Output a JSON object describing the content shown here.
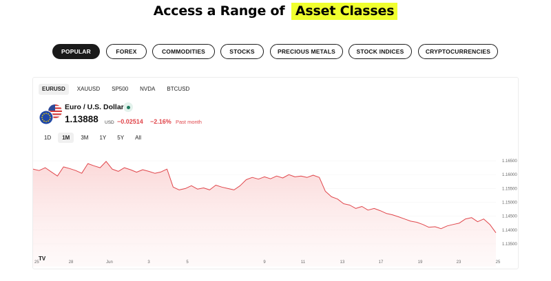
{
  "heading": {
    "prefix": "Access a Range of",
    "highlight": "Asset Classes"
  },
  "categories": [
    {
      "label": "POPULAR",
      "active": true
    },
    {
      "label": "FOREX",
      "active": false
    },
    {
      "label": "COMMODITIES",
      "active": false
    },
    {
      "label": "STOCKS",
      "active": false
    },
    {
      "label": "PRECIOUS METALS",
      "active": false
    },
    {
      "label": "STOCK INDICES",
      "active": false
    },
    {
      "label": "CRYPTOCURRENCIES",
      "active": false
    }
  ],
  "widget": {
    "symbols": [
      "EURUSD",
      "XAUUSD",
      "SP500",
      "NVDA",
      "BTCUSD"
    ],
    "active_symbol": "EURUSD",
    "instrument": "Euro / U.S. Dollar",
    "price": "1.13888",
    "currency": "USD",
    "change": "−0.02514",
    "change_pct": "−2.16%",
    "period": "Past month",
    "ranges": [
      "1D",
      "1M",
      "3M",
      "1Y",
      "5Y",
      "All"
    ],
    "active_range": "1M",
    "colors": {
      "line": "#e0454a",
      "fill": "#fde3e3",
      "status": "#1e7b5e"
    }
  },
  "chart_data": {
    "type": "area",
    "x_ticks": [
      "25",
      "28",
      "Jun",
      "3",
      "5",
      "",
      "9",
      "11",
      "13",
      "17",
      "19",
      "23",
      "25",
      ""
    ],
    "y_ticks": [
      "1.16500",
      "1.16000",
      "1.15500",
      "1.15000",
      "1.14500",
      "1.14000",
      "1.13500"
    ],
    "ylim": [
      1.133,
      1.167
    ],
    "series": [
      {
        "values": [
          1.162,
          1.1615,
          1.1625,
          1.161,
          1.1595,
          1.1628,
          1.1622,
          1.1615,
          1.1605,
          1.164,
          1.1632,
          1.1625,
          1.1648,
          1.162,
          1.1612,
          1.1625,
          1.1618,
          1.1609,
          1.1618,
          1.1612,
          1.1605,
          1.161,
          1.162,
          1.1555,
          1.1545,
          1.155,
          1.156,
          1.1548,
          1.1552,
          1.1545,
          1.1562,
          1.1555,
          1.155,
          1.1545,
          1.156,
          1.1582,
          1.159,
          1.1584,
          1.1592,
          1.1585,
          1.1595,
          1.1588,
          1.16,
          1.1592,
          1.1595,
          1.159,
          1.1598,
          1.159,
          1.154,
          1.152,
          1.1512,
          1.1495,
          1.149,
          1.1478,
          1.1485,
          1.1472,
          1.1478,
          1.147,
          1.146,
          1.1455,
          1.1448,
          1.144,
          1.1432,
          1.1428,
          1.142,
          1.141,
          1.1412,
          1.1405,
          1.1415,
          1.142,
          1.1425,
          1.144,
          1.1445,
          1.143,
          1.144,
          1.142,
          1.139
        ]
      }
    ]
  }
}
